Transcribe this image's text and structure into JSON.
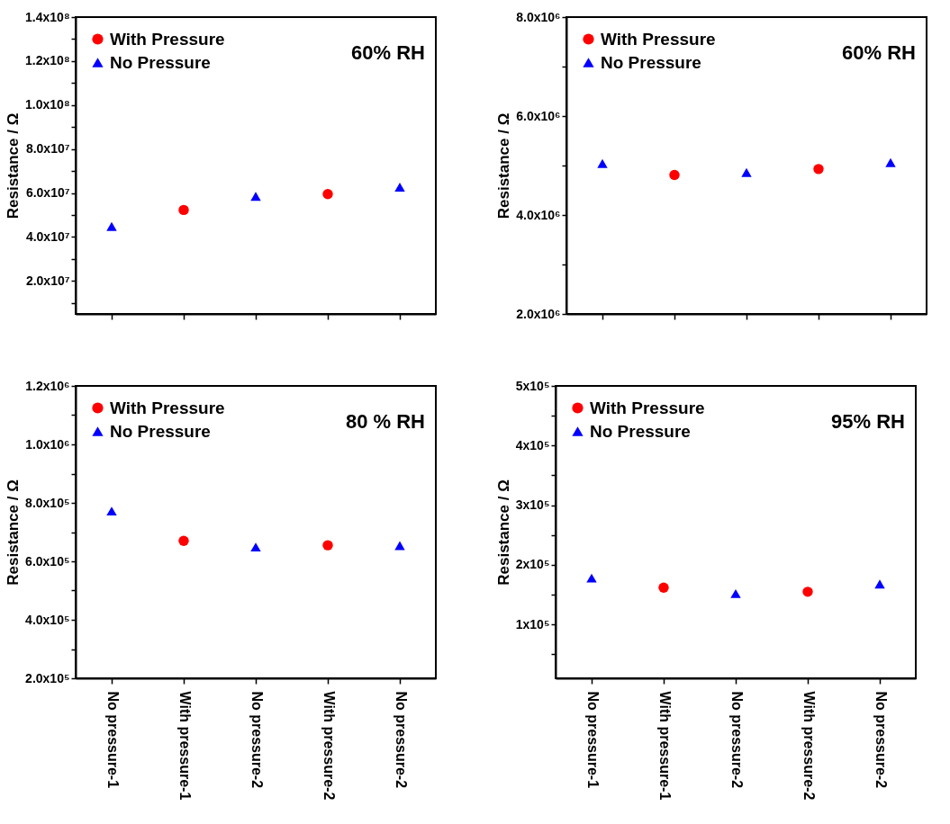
{
  "chart_data": [
    {
      "type": "scatter",
      "categories": [
        null,
        null,
        null,
        null,
        null
      ],
      "ylabel": "Resistance / Ω",
      "ylim": [
        5000000,
        140000000
      ],
      "yticks": [
        {
          "value": 10000000,
          "label": null
        },
        {
          "value": 20000000,
          "label": "2.0x10⁷"
        },
        {
          "value": 30000000,
          "label": null
        },
        {
          "value": 40000000,
          "label": "4.0x10⁷"
        },
        {
          "value": 50000000,
          "label": null
        },
        {
          "value": 60000000,
          "label": "6.0x10⁷"
        },
        {
          "value": 70000000,
          "label": null
        },
        {
          "value": 80000000,
          "label": "8.0x10⁷"
        },
        {
          "value": 90000000,
          "label": null
        },
        {
          "value": 100000000,
          "label": "1.0x10⁸"
        },
        {
          "value": 110000000,
          "label": null
        },
        {
          "value": 120000000,
          "label": "1.2x10⁸"
        },
        {
          "value": 130000000,
          "label": null
        },
        {
          "value": 140000000,
          "label": "1.4x10⁸"
        }
      ],
      "tick_labels": "y",
      "legend": "top left",
      "annotations": [
        "60% RH"
      ],
      "series": [
        {
          "name": "With Pressure",
          "color": "#ff0000",
          "marker": "circle",
          "values": [
            null,
            52300000,
            null,
            59500000,
            null
          ]
        },
        {
          "name": "No Pressure",
          "color": "#0000ff",
          "marker": "triangle",
          "values": [
            44800000,
            null,
            58500000,
            null,
            62700000
          ]
        }
      ]
    },
    {
      "type": "scatter",
      "categories": [
        null,
        null,
        null,
        null,
        null
      ],
      "ylabel": "Resistance / Ω",
      "ylim": [
        2000000,
        8000000
      ],
      "yticks": [
        {
          "value": 2000000,
          "label": "2.0x10⁶"
        },
        {
          "value": 3000000,
          "label": null
        },
        {
          "value": 4000000,
          "label": "4.0x10⁶"
        },
        {
          "value": 5000000,
          "label": null
        },
        {
          "value": 6000000,
          "label": "6.0x10⁶"
        },
        {
          "value": 7000000,
          "label": null
        },
        {
          "value": 8000000,
          "label": "8.0x10⁶"
        }
      ],
      "tick_labels": "y",
      "legend": "top left",
      "annotations": [
        "60% RH"
      ],
      "series": [
        {
          "name": "With Pressure",
          "color": "#ff0000",
          "marker": "circle",
          "values": [
            null,
            4810000,
            null,
            4930000,
            null
          ]
        },
        {
          "name": "No Pressure",
          "color": "#0000ff",
          "marker": "triangle",
          "values": [
            5040000,
            null,
            4860000,
            null,
            5060000
          ]
        }
      ]
    },
    {
      "type": "scatter",
      "categories": [
        "No pressure-1",
        "With pressure-1",
        "No pressure-2",
        "With pressure-2",
        "No pressure-2"
      ],
      "ylabel": "Resistance / Ω",
      "ylim": [
        200000,
        1200000
      ],
      "yticks": [
        {
          "value": 200000,
          "label": "2.0x10⁵"
        },
        {
          "value": 300000,
          "label": null
        },
        {
          "value": 400000,
          "label": "4.0x10⁵"
        },
        {
          "value": 500000,
          "label": null
        },
        {
          "value": 600000,
          "label": "6.0x10⁵"
        },
        {
          "value": 700000,
          "label": null
        },
        {
          "value": 800000,
          "label": "8.0x10⁵"
        },
        {
          "value": 900000,
          "label": null
        },
        {
          "value": 1000000,
          "label": "1.0x10⁶"
        },
        {
          "value": 1100000,
          "label": null
        },
        {
          "value": 1200000,
          "label": "1.2x10⁶"
        }
      ],
      "legend": "top left",
      "annotations": [
        "80 % RH"
      ],
      "series": [
        {
          "name": "With Pressure",
          "color": "#ff0000",
          "marker": "circle",
          "values": [
            null,
            670000,
            null,
            655000,
            null
          ]
        },
        {
          "name": "No Pressure",
          "color": "#0000ff",
          "marker": "triangle",
          "values": [
            772000,
            null,
            649000,
            null,
            654000
          ]
        }
      ]
    },
    {
      "type": "scatter",
      "categories": [
        "No pressure-1",
        "With pressure-1",
        "No pressure-2",
        "With pressure-2",
        "No pressure-2"
      ],
      "ylabel": "Resistance / Ω",
      "ylim": [
        10000,
        500000
      ],
      "yticks": [
        {
          "value": 50000,
          "label": null
        },
        {
          "value": 100000,
          "label": "1x10⁵"
        },
        {
          "value": 150000,
          "label": null
        },
        {
          "value": 200000,
          "label": "2x10⁵"
        },
        {
          "value": 250000,
          "label": null
        },
        {
          "value": 300000,
          "label": "3x10⁵"
        },
        {
          "value": 350000,
          "label": null
        },
        {
          "value": 400000,
          "label": "4x10⁵"
        },
        {
          "value": 450000,
          "label": null
        },
        {
          "value": 500000,
          "label": "5x10⁵"
        }
      ],
      "legend": "top left",
      "annotations": [
        "95% RH"
      ],
      "series": [
        {
          "name": "With Pressure",
          "color": "#ff0000",
          "marker": "circle",
          "values": [
            null,
            162000,
            null,
            155000,
            null
          ]
        },
        {
          "name": "No Pressure",
          "color": "#0000ff",
          "marker": "triangle",
          "values": [
            178000,
            null,
            152000,
            null,
            168000
          ]
        }
      ]
    }
  ]
}
